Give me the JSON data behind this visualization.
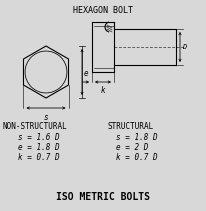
{
  "title": "HEXAGON BOLT",
  "footer": "ISO METRIC BOLTS",
  "ns_label": "NON-STRUCTURAL",
  "s_label": "STRUCTURAL",
  "ns_lines": [
    "s = 1.6 D",
    "e = 1.8 D",
    "k = 0.7 D"
  ],
  "s_lines": [
    "s = 1.8 D",
    "e = 2 D",
    "k = 0.7 D"
  ],
  "bg_color": "#d8d8d8",
  "line_color": "#000000"
}
